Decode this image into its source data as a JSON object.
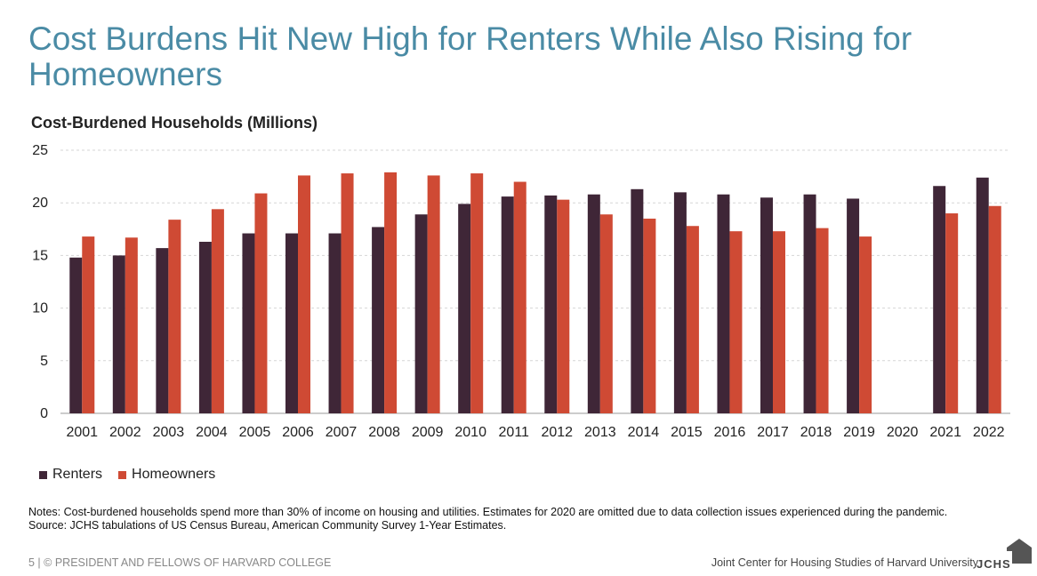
{
  "title": "Cost Burdens Hit New High for Renters While Also Rising for Homeowners",
  "colors": {
    "renters": "#3f2637",
    "homeowners": "#cf4a34",
    "title": "#4a8ba5"
  },
  "chart_data": {
    "type": "bar",
    "title": "Cost-Burdened Households (Millions)",
    "xlabel": "",
    "ylabel": "",
    "ylim": [
      0,
      25
    ],
    "yticks": [
      0,
      5,
      10,
      15,
      20,
      25
    ],
    "grid": true,
    "legend_position": "bottom-left",
    "categories": [
      "2001",
      "2002",
      "2003",
      "2004",
      "2005",
      "2006",
      "2007",
      "2008",
      "2009",
      "2010",
      "2011",
      "2012",
      "2013",
      "2014",
      "2015",
      "2016",
      "2017",
      "2018",
      "2019",
      "2020",
      "2021",
      "2022"
    ],
    "series": [
      {
        "name": "Renters",
        "color": "#3f2637",
        "values": [
          14.8,
          15.0,
          15.7,
          16.3,
          17.1,
          17.1,
          17.1,
          17.7,
          18.9,
          19.9,
          20.6,
          20.7,
          20.8,
          21.3,
          21.0,
          20.8,
          20.5,
          20.8,
          20.4,
          null,
          21.6,
          22.4
        ]
      },
      {
        "name": "Homeowners",
        "color": "#cf4a34",
        "values": [
          16.8,
          16.7,
          18.4,
          19.4,
          20.9,
          22.6,
          22.8,
          22.9,
          22.6,
          22.8,
          22.0,
          20.3,
          18.9,
          18.5,
          17.8,
          17.3,
          17.3,
          17.6,
          16.8,
          null,
          19.0,
          19.7
        ]
      }
    ]
  },
  "notes": {
    "line1": "Notes: Cost-burdened households spend more than 30% of income on housing and utilities. Estimates for 2020 are omitted due to data collection issues experienced during the pandemic.",
    "line2": "Source: JCHS tabulations of US Census Bureau, American Community Survey 1-Year Estimates."
  },
  "footer": {
    "left": "5 | © PRESIDENT AND FELLOWS OF HARVARD COLLEGE",
    "right": "Joint Center for Housing Studies of Harvard University",
    "logo": "JCHS"
  }
}
